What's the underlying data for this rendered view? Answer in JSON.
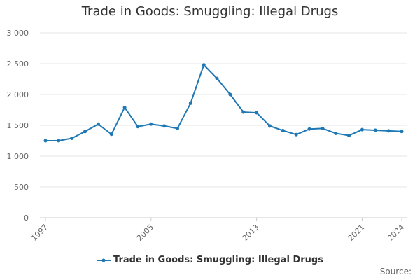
{
  "chart_data": {
    "type": "line",
    "title": "Trade in Goods: Smuggling: Illegal Drugs",
    "xlabel": "",
    "ylabel": "",
    "x": [
      1997,
      1998,
      1999,
      2000,
      2001,
      2002,
      2003,
      2004,
      2005,
      2006,
      2007,
      2008,
      2009,
      2010,
      2011,
      2012,
      2013,
      2014,
      2015,
      2016,
      2017,
      2018,
      2019,
      2020,
      2021,
      2022,
      2023,
      2024
    ],
    "xticks": [
      "1997",
      "2005",
      "2013",
      "2021",
      "2024"
    ],
    "ylim": [
      0,
      3000
    ],
    "yticks": [
      "0",
      "500",
      "1 000",
      "1 500",
      "2 000",
      "2 500",
      "3 000"
    ],
    "grid": true,
    "legend_position": "bottom-center",
    "series": [
      {
        "name": "Trade in Goods: Smuggling: Illegal Drugs",
        "color": "#1f78b4",
        "values": [
          1250,
          1250,
          1290,
          1400,
          1520,
          1355,
          1790,
          1480,
          1520,
          1490,
          1450,
          1860,
          2480,
          2260,
          2000,
          1715,
          1705,
          1490,
          1415,
          1350,
          1440,
          1450,
          1370,
          1335,
          1430,
          1420,
          1410,
          1400
        ]
      }
    ]
  },
  "footer": {
    "source_label": "Source:"
  }
}
